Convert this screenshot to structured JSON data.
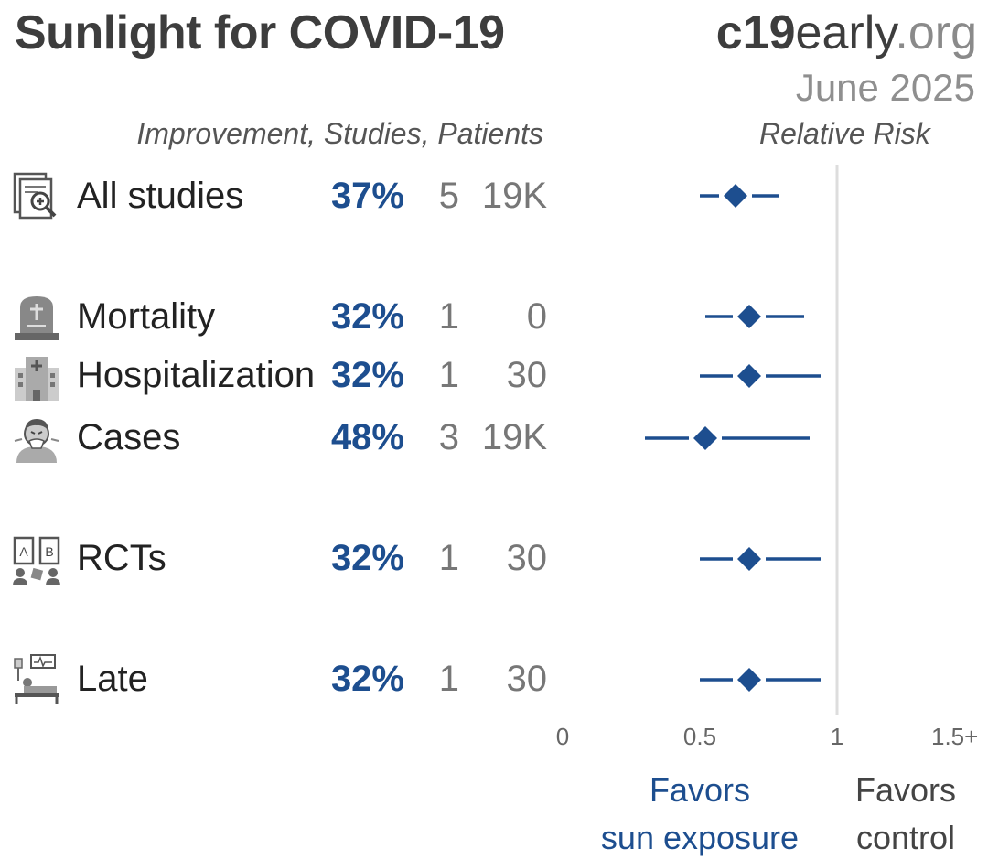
{
  "header": {
    "title": "Sunlight for COVID-19",
    "logo_bold": "c19",
    "logo_mid": "early",
    "logo_light": ".org",
    "date": "June 2025"
  },
  "columns": {
    "left_header": "Improvement, Studies, Patients",
    "right_header": "Relative Risk"
  },
  "colors": {
    "accent": "#1d4e8f",
    "reference_line": "#dddddd"
  },
  "rows": [
    {
      "label": "All studies",
      "improvement": "37%",
      "studies": "5",
      "patients": "19K",
      "icon": "studies-icon"
    },
    {
      "label": "Mortality",
      "improvement": "32%",
      "studies": "1",
      "patients": "0",
      "icon": "tombstone-icon"
    },
    {
      "label": "Hospitalization",
      "improvement": "32%",
      "studies": "1",
      "patients": "30",
      "icon": "hospital-icon"
    },
    {
      "label": "Cases",
      "improvement": "48%",
      "studies": "3",
      "patients": "19K",
      "icon": "sick-person-icon"
    },
    {
      "label": "RCTs",
      "improvement": "32%",
      "studies": "1",
      "patients": "30",
      "icon": "rct-icon"
    },
    {
      "label": "Late",
      "improvement": "32%",
      "studies": "1",
      "patients": "30",
      "icon": "hospital-bed-icon"
    }
  ],
  "axis": {
    "ticks": [
      "0",
      "0.5",
      "1",
      "1.5+"
    ]
  },
  "favors": {
    "treatment_line1": "Favors",
    "treatment_line2": "sun exposure",
    "control_line1": "Favors",
    "control_line2": "control"
  },
  "chart_data": {
    "type": "forest",
    "title": "Sunlight for COVID-19",
    "xlabel": "Relative Risk",
    "xlim": [
      0,
      1.5
    ],
    "reference_value": 1,
    "categories": [
      "All studies",
      "Mortality",
      "Hospitalization",
      "Cases",
      "RCTs",
      "Late"
    ],
    "series": [
      {
        "name": "Relative Risk",
        "estimate": [
          0.63,
          0.68,
          0.68,
          0.52,
          0.68,
          0.68
        ],
        "ci_low": [
          0.5,
          0.52,
          0.5,
          0.3,
          0.5,
          0.5
        ],
        "ci_high": [
          0.79,
          0.88,
          0.94,
          0.9,
          0.94,
          0.94
        ]
      }
    ],
    "improvement_percent": [
      37,
      32,
      32,
      48,
      32,
      32
    ],
    "studies": [
      5,
      1,
      1,
      3,
      1,
      1
    ],
    "patients": [
      "19K",
      "0",
      "30",
      "19K",
      "30",
      "30"
    ]
  }
}
